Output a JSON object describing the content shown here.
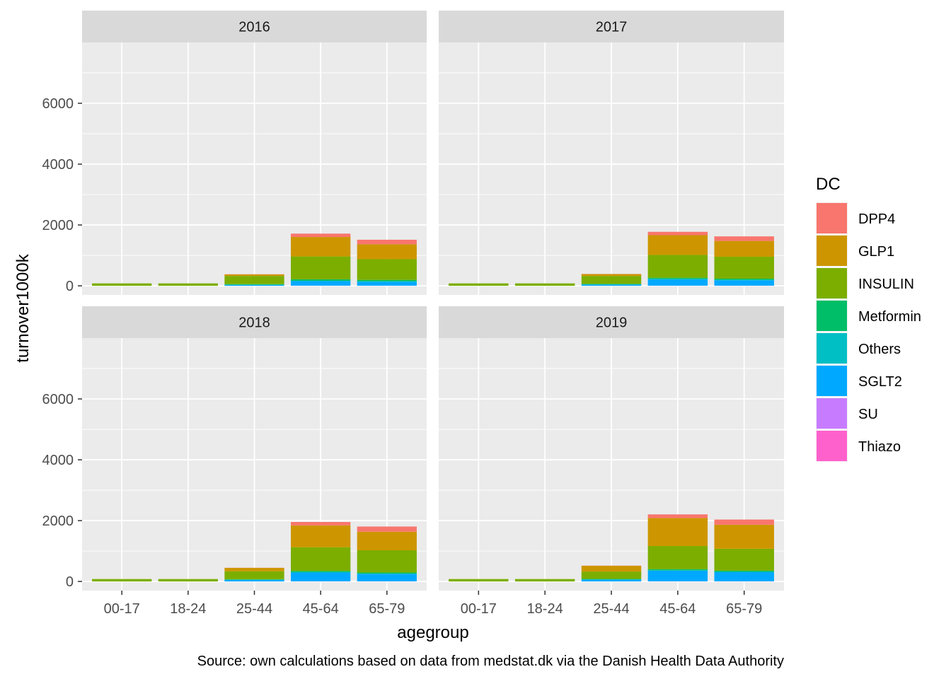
{
  "chart_data": {
    "type": "bar",
    "stacked": true,
    "facets": [
      "2016",
      "2017",
      "2018",
      "2019"
    ],
    "facet_layout": "2x2",
    "categories": [
      "00-17",
      "18-24",
      "25-44",
      "45-64",
      "65-79"
    ],
    "xlabel": "agegroup",
    "ylabel": "turnover1000k",
    "ylim": [
      -300,
      8000
    ],
    "yticks": [
      0,
      2000,
      4000,
      6000
    ],
    "grid": true,
    "legend": {
      "title": "DC",
      "position": "right"
    },
    "caption": "Source: own calculations based on data from medstat.dk via the Danish Health Data Authority",
    "series": [
      {
        "name": "DPP4",
        "color": "#F8766D",
        "values": {
          "2016": [
            0,
            0,
            5,
            110,
            150
          ],
          "2017": [
            0,
            0,
            5,
            110,
            150
          ],
          "2018": [
            0,
            0,
            5,
            110,
            170
          ],
          "2019": [
            0,
            0,
            5,
            120,
            170
          ]
        }
      },
      {
        "name": "GLP1",
        "color": "#CD9600",
        "values": {
          "2016": [
            0,
            0,
            50,
            640,
            490
          ],
          "2017": [
            0,
            0,
            60,
            650,
            520
          ],
          "2018": [
            0,
            0,
            110,
            720,
            610
          ],
          "2019": [
            0,
            0,
            190,
            920,
            790
          ]
        }
      },
      {
        "name": "INSULIN",
        "color": "#7CAE00",
        "values": {
          "2016": [
            80,
            80,
            270,
            750,
            680
          ],
          "2017": [
            80,
            80,
            260,
            750,
            720
          ],
          "2018": [
            80,
            80,
            260,
            780,
            730
          ],
          "2019": [
            80,
            80,
            240,
            760,
            720
          ]
        }
      },
      {
        "name": "Metformin",
        "color": "#00BE67",
        "values": {
          "2016": [
            0,
            0,
            20,
            50,
            50
          ],
          "2017": [
            0,
            0,
            20,
            40,
            40
          ],
          "2018": [
            0,
            0,
            20,
            40,
            40
          ],
          "2019": [
            0,
            0,
            20,
            40,
            40
          ]
        }
      },
      {
        "name": "Others",
        "color": "#00BFC4",
        "values": {
          "2016": [
            0,
            0,
            5,
            10,
            10
          ],
          "2017": [
            0,
            0,
            5,
            10,
            10
          ],
          "2018": [
            0,
            0,
            5,
            10,
            10
          ],
          "2019": [
            0,
            0,
            5,
            10,
            10
          ]
        }
      },
      {
        "name": "SGLT2",
        "color": "#00A9FF",
        "values": {
          "2016": [
            0,
            0,
            30,
            150,
            130
          ],
          "2017": [
            0,
            0,
            40,
            210,
            180
          ],
          "2018": [
            0,
            0,
            50,
            290,
            240
          ],
          "2019": [
            0,
            0,
            60,
            350,
            300
          ]
        }
      },
      {
        "name": "SU",
        "color": "#C77CFF",
        "values": {
          "2016": [
            0,
            0,
            0,
            5,
            5
          ],
          "2017": [
            0,
            0,
            0,
            5,
            5
          ],
          "2018": [
            0,
            0,
            0,
            5,
            5
          ],
          "2019": [
            0,
            0,
            0,
            5,
            5
          ]
        }
      },
      {
        "name": "Thiazo",
        "color": "#FF61CC",
        "values": {
          "2016": [
            0,
            0,
            0,
            0,
            0
          ],
          "2017": [
            0,
            0,
            0,
            0,
            0
          ],
          "2018": [
            0,
            0,
            0,
            0,
            0
          ],
          "2019": [
            0,
            0,
            0,
            0,
            0
          ]
        }
      }
    ]
  }
}
